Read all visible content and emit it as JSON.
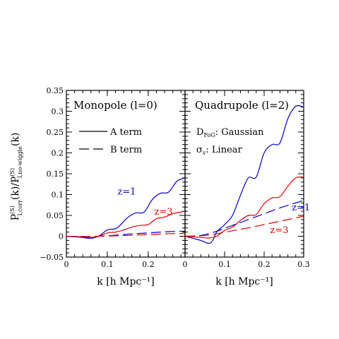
{
  "figure": {
    "ylabel_main": "P",
    "ylabel_sup": "(S)",
    "ylabel_sub1": "l,corr",
    "ylabel_mid": "(k)/P",
    "ylabel_sub2": "l,no-wiggle",
    "ylabel_end": "(k)",
    "xlabel": "k [h Mpc⁻¹]"
  },
  "panels": [
    {
      "title": "Monopole (l=0)",
      "legend": [
        {
          "label": "A term",
          "style": "solid"
        },
        {
          "label": "B term",
          "style": "dashed"
        }
      ]
    },
    {
      "title": "Quadrupole (l=2)",
      "legend_text": [
        {
          "main": "D",
          "sub": "FoG",
          "rest": ": Gaussian"
        },
        {
          "main": "σ",
          "sub": "v",
          "rest": ": Linear"
        }
      ]
    }
  ],
  "chart_data": [
    {
      "type": "line",
      "title": "Monopole (l=0)",
      "xlim": [
        0,
        0.29
      ],
      "ylim": [
        -0.05,
        0.35
      ],
      "x_ticks": [
        0,
        0.1,
        0.2
      ],
      "x_tick_labels": [
        "0",
        "0.1",
        "0.2"
      ],
      "y_ticks": [
        -0.05,
        0,
        0.05,
        0.1,
        0.15,
        0.2,
        0.25,
        0.3,
        0.35
      ],
      "y_tick_labels": [
        "−0.05",
        "0",
        "0.05",
        "0.1",
        "0.15",
        "0.2",
        "0.25",
        "0.3",
        "0.35"
      ],
      "series": [
        {
          "label": "z=1",
          "term": "A",
          "color": "#0000cc",
          "dash": "solid",
          "x": [
            0,
            0.03,
            0.06,
            0.08,
            0.1,
            0.12,
            0.13,
            0.15,
            0.17,
            0.19,
            0.21,
            0.23,
            0.25,
            0.27,
            0.29
          ],
          "y": [
            0,
            -0.002,
            -0.005,
            0.001,
            0.015,
            0.018,
            0.025,
            0.045,
            0.056,
            0.058,
            0.088,
            0.103,
            0.106,
            0.132,
            0.14
          ]
        },
        {
          "label": "z=3",
          "term": "A",
          "color": "#dd0000",
          "dash": "solid",
          "x": [
            0,
            0.03,
            0.06,
            0.08,
            0.1,
            0.12,
            0.14,
            0.16,
            0.18,
            0.2,
            0.22,
            0.24,
            0.26,
            0.29
          ],
          "y": [
            0,
            -0.001,
            -0.003,
            0.0,
            0.008,
            0.01,
            0.015,
            0.022,
            0.026,
            0.028,
            0.042,
            0.046,
            0.054,
            0.06
          ]
        },
        {
          "label": "z=1",
          "term": "B",
          "color": "#0000cc",
          "dash": "dashed",
          "x": [
            0,
            0.05,
            0.1,
            0.15,
            0.2,
            0.25,
            0.29
          ],
          "y": [
            0,
            -0.001,
            0.001,
            0.005,
            0.008,
            0.011,
            0.012
          ]
        },
        {
          "label": "z=3",
          "term": "B",
          "color": "#dd0000",
          "dash": "dashed",
          "x": [
            0,
            0.05,
            0.1,
            0.15,
            0.2,
            0.25,
            0.29
          ],
          "y": [
            0,
            -0.0005,
            0.0005,
            0.002,
            0.004,
            0.006,
            0.007
          ]
        }
      ],
      "annotations": [
        {
          "text": "z=1",
          "color": "#0000cc",
          "x": 0.125,
          "y": 0.1
        },
        {
          "text": "z=3",
          "color": "#dd0000",
          "x": 0.215,
          "y": 0.052
        }
      ]
    },
    {
      "type": "line",
      "title": "Quadrupole (l=2)",
      "xlim": [
        0,
        0.3
      ],
      "ylim": [
        -0.05,
        0.35
      ],
      "x_ticks": [
        0,
        0.1,
        0.2,
        0.3
      ],
      "x_tick_labels": [
        "0",
        "0.1",
        "0.2",
        "0.3"
      ],
      "y_ticks": [
        -0.05,
        0,
        0.05,
        0.1,
        0.15,
        0.2,
        0.25,
        0.3,
        0.35
      ],
      "series": [
        {
          "label": "z=1",
          "term": "A",
          "color": "#0000cc",
          "dash": "solid",
          "x": [
            0,
            0.02,
            0.04,
            0.06,
            0.07,
            0.08,
            0.1,
            0.12,
            0.14,
            0.16,
            0.18,
            0.2,
            0.22,
            0.24,
            0.26,
            0.28,
            0.3
          ],
          "y": [
            0,
            -0.005,
            -0.01,
            -0.017,
            -0.01,
            0.01,
            0.028,
            0.05,
            0.098,
            0.14,
            0.142,
            0.2,
            0.22,
            0.224,
            0.282,
            0.312,
            0.31
          ]
        },
        {
          "label": "z=3",
          "term": "A",
          "color": "#dd0000",
          "dash": "solid",
          "x": [
            0,
            0.03,
            0.06,
            0.08,
            0.1,
            0.12,
            0.14,
            0.16,
            0.18,
            0.2,
            0.22,
            0.24,
            0.26,
            0.28,
            0.3
          ],
          "y": [
            0,
            -0.002,
            -0.004,
            0.0,
            0.014,
            0.022,
            0.038,
            0.05,
            0.052,
            0.078,
            0.092,
            0.095,
            0.12,
            0.14,
            0.142
          ]
        },
        {
          "label": "z=1",
          "term": "B",
          "color": "#0000cc",
          "dash": "dashed",
          "x": [
            0,
            0.04,
            0.08,
            0.12,
            0.16,
            0.2,
            0.24,
            0.3
          ],
          "y": [
            0,
            0.002,
            0.012,
            0.026,
            0.04,
            0.054,
            0.068,
            0.086
          ]
        },
        {
          "label": "z=3",
          "term": "B",
          "color": "#dd0000",
          "dash": "dashed",
          "x": [
            0,
            0.04,
            0.08,
            0.12,
            0.16,
            0.2,
            0.24,
            0.3
          ],
          "y": [
            0,
            0.001,
            0.006,
            0.013,
            0.02,
            0.028,
            0.036,
            0.048
          ]
        }
      ],
      "annotations": [
        {
          "text": "z=1",
          "color": "#0000cc",
          "x": 0.27,
          "y": 0.062
        },
        {
          "text": "z=3",
          "color": "#dd0000",
          "x": 0.215,
          "y": 0.008
        }
      ]
    }
  ]
}
